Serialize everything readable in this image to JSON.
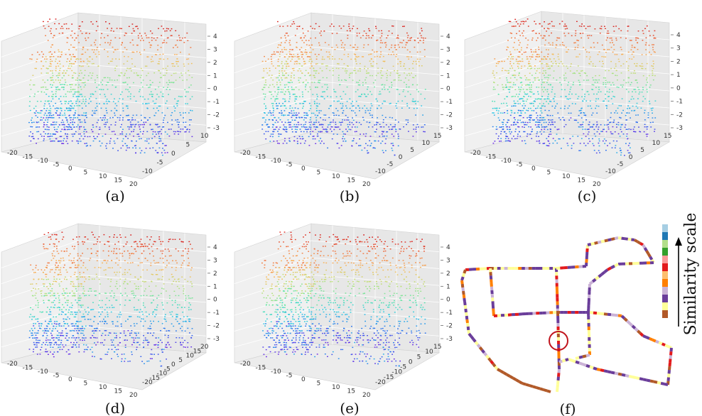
{
  "figure": {
    "panels": [
      {
        "label": "(a)",
        "variant": 0,
        "x_ticks": [
          "-20",
          "-15",
          "-10",
          "-5",
          "0",
          "5",
          "10",
          "15",
          "20"
        ],
        "y_ticks": [
          "10",
          "5",
          "0",
          "-5",
          "-10"
        ],
        "z_ticks": [
          "4",
          "3",
          "2",
          "1",
          "0",
          "-1",
          "-2",
          "-3"
        ]
      },
      {
        "label": "(b)",
        "variant": 1,
        "x_ticks": [
          "-20",
          "-15",
          "-10",
          "-5",
          "0",
          "5",
          "10",
          "15",
          "20"
        ],
        "y_ticks": [
          "15",
          "10",
          "5",
          "0",
          "-5",
          "-10"
        ],
        "z_ticks": [
          "4",
          "3",
          "2",
          "1",
          "0",
          "-1",
          "-2",
          "-3"
        ]
      },
      {
        "label": "(c)",
        "variant": 2,
        "x_ticks": [
          "-20",
          "-15",
          "-10",
          "-5",
          "0",
          "5",
          "10",
          "15",
          "20"
        ],
        "y_ticks": [
          "15",
          "10",
          "5",
          "0",
          "-5",
          "-10"
        ],
        "z_ticks": [
          "4",
          "3",
          "2",
          "1",
          "0",
          "-1",
          "-2",
          "-3"
        ]
      },
      {
        "label": "(d)",
        "variant": 3,
        "x_ticks": [
          "-20",
          "-15",
          "-10",
          "-5",
          "0",
          "5",
          "10",
          "15",
          "20"
        ],
        "y_ticks": [
          "20",
          "15",
          "10",
          "5",
          "0",
          "-5",
          "-10",
          "-15",
          "-20"
        ],
        "z_ticks": [
          "4",
          "3",
          "2",
          "1",
          "0",
          "-1",
          "-2",
          "-3"
        ]
      },
      {
        "label": "(e)",
        "variant": 4,
        "x_ticks": [
          "-20",
          "-15",
          "-10",
          "-5",
          "0",
          "5",
          "10",
          "15",
          "20"
        ],
        "y_ticks": [
          "15",
          "10",
          "5",
          "0",
          "-5",
          "-10",
          "-15",
          "-20"
        ],
        "z_ticks": [
          "4",
          "3",
          "2",
          "1",
          "0",
          "-1",
          "-2",
          "-3"
        ]
      }
    ],
    "route_panel": {
      "label": "(f)",
      "scale_title": "Similarity scale",
      "scale_colors": [
        "#a6cee3",
        "#1f78b4",
        "#b2df8a",
        "#33a02c",
        "#fb9a99",
        "#e31a1c",
        "#fdbf6f",
        "#ff7f00",
        "#cab2d6",
        "#6a3d9a",
        "#ffff99",
        "#b15928"
      ]
    }
  },
  "chart_data": [
    {
      "type": "scatter",
      "title": "(a)",
      "description": "3D point cloud colored by height (z)",
      "x_range": [
        -20,
        20
      ],
      "y_range": [
        -10,
        10
      ],
      "z_range": [
        -3,
        4
      ],
      "color_map": "rainbow by z"
    },
    {
      "type": "scatter",
      "title": "(b)",
      "description": "3D point cloud colored by height (z)",
      "x_range": [
        -20,
        20
      ],
      "y_range": [
        -10,
        15
      ],
      "z_range": [
        -3,
        4
      ],
      "color_map": "rainbow by z"
    },
    {
      "type": "scatter",
      "title": "(c)",
      "description": "3D point cloud colored by height (z)",
      "x_range": [
        -20,
        20
      ],
      "y_range": [
        -10,
        15
      ],
      "z_range": [
        -3,
        4
      ],
      "color_map": "rainbow by z"
    },
    {
      "type": "scatter",
      "title": "(d)",
      "description": "3D point cloud colored by height (z)",
      "x_range": [
        -20,
        20
      ],
      "y_range": [
        -20,
        20
      ],
      "z_range": [
        -3,
        4
      ],
      "color_map": "rainbow by z"
    },
    {
      "type": "scatter",
      "title": "(e)",
      "description": "3D point cloud colored by height (z)",
      "x_range": [
        -20,
        20
      ],
      "y_range": [
        -20,
        15
      ],
      "z_range": [
        -3,
        4
      ],
      "color_map": "rainbow by z"
    },
    {
      "type": "line",
      "title": "(f)",
      "description": "Trajectory map colored by similarity scale",
      "legend": "Similarity scale"
    }
  ]
}
